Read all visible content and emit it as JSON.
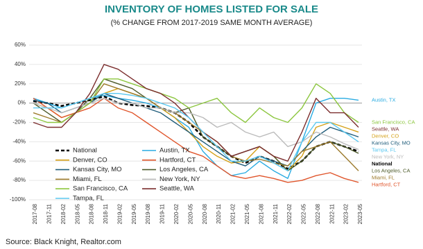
{
  "chart_data": {
    "type": "line",
    "title": "INVENTORY OF HOMES LISTED FOR SALE",
    "subtitle": "(% CHANGE FROM 2017-2019 SAME MONTH AVERAGE)",
    "source": "Source: Black Knight, Realtor.com",
    "categories": [
      "2017-08",
      "2017-11",
      "2018-02",
      "2018-05",
      "2018-08",
      "2018-11",
      "2019-02",
      "2019-05",
      "2019-08",
      "2019-11",
      "2020-02",
      "2020-05",
      "2020-08",
      "2020-11",
      "2021-02",
      "2021-05",
      "2021-08",
      "2021-11",
      "2022-02",
      "2022-05",
      "2022-08",
      "2022-11",
      "2023-02",
      "2023-05"
    ],
    "ylim": [
      -100,
      60
    ],
    "yticks": [
      {
        "value": -100,
        "label": "-100%"
      },
      {
        "value": -80,
        "label": "-80%"
      },
      {
        "value": -60,
        "label": "-60%"
      },
      {
        "value": -40,
        "label": "-40%"
      },
      {
        "value": -20,
        "label": "-20%"
      },
      {
        "value": 0,
        "label": "0%"
      },
      {
        "value": 20,
        "label": "20%"
      },
      {
        "value": 40,
        "label": "40%"
      },
      {
        "value": 60,
        "label": "60%"
      }
    ],
    "grid": true,
    "series": [
      {
        "name": "National",
        "color": "#000000",
        "dashed": true,
        "values": [
          2,
          0,
          -3,
          0,
          3,
          7,
          0,
          -2,
          -3,
          -5,
          -10,
          -20,
          -35,
          -45,
          -55,
          -62,
          -55,
          -60,
          -68,
          -60,
          -45,
          -40,
          -45,
          -50
        ]
      },
      {
        "name": "Austin, TX",
        "color": "#29abe2",
        "values": [
          5,
          0,
          -5,
          0,
          5,
          8,
          5,
          3,
          0,
          -5,
          -15,
          -25,
          -50,
          -65,
          -75,
          -72,
          -60,
          -70,
          -78,
          -40,
          0,
          5,
          5,
          3
        ]
      },
      {
        "name": "Denver, CO",
        "color": "#d4a017",
        "values": [
          0,
          -5,
          -15,
          -10,
          0,
          10,
          15,
          10,
          5,
          -5,
          -15,
          -30,
          -45,
          -55,
          -62,
          -60,
          -45,
          -55,
          -70,
          -55,
          -25,
          -20,
          -25,
          -30
        ]
      },
      {
        "name": "Hartford, CT",
        "color": "#e0552b",
        "values": [
          5,
          -5,
          -15,
          -10,
          -5,
          5,
          -5,
          -10,
          -20,
          -30,
          -40,
          -50,
          -55,
          -65,
          -75,
          -78,
          -75,
          -78,
          -82,
          -80,
          -75,
          -72,
          -78,
          -82
        ]
      },
      {
        "name": "Kansas City, MO",
        "color": "#1f5c7a",
        "values": [
          3,
          0,
          -10,
          -5,
          0,
          10,
          5,
          0,
          -5,
          -10,
          -20,
          -30,
          -40,
          -50,
          -60,
          -65,
          -55,
          -60,
          -65,
          -50,
          -35,
          -25,
          -30,
          -35
        ]
      },
      {
        "name": "Los Angeles, CA",
        "color": "#4d5a2a",
        "values": [
          0,
          -10,
          -20,
          -10,
          5,
          25,
          20,
          15,
          5,
          -5,
          -10,
          -5,
          -35,
          -45,
          -55,
          -50,
          -45,
          -55,
          -70,
          -60,
          -45,
          -40,
          -45,
          -52
        ]
      },
      {
        "name": "Miami, FL",
        "color": "#9c7a2b",
        "values": [
          -10,
          -15,
          -20,
          -10,
          0,
          20,
          15,
          10,
          5,
          -5,
          -10,
          -20,
          -30,
          -40,
          -55,
          -60,
          -58,
          -62,
          -65,
          -50,
          -45,
          -40,
          -55,
          -70
        ]
      },
      {
        "name": "New York, NY",
        "color": "#bbbbbb",
        "values": [
          0,
          -5,
          -10,
          -5,
          0,
          5,
          0,
          0,
          -5,
          -5,
          -10,
          -10,
          -15,
          -25,
          -20,
          -30,
          -35,
          -30,
          -45,
          -40,
          -30,
          -35,
          -42,
          -48
        ]
      },
      {
        "name": "San Francisco, CA",
        "color": "#8cc63f",
        "values": [
          -15,
          -20,
          -20,
          -10,
          0,
          25,
          25,
          20,
          15,
          10,
          5,
          -5,
          0,
          5,
          -10,
          -20,
          -5,
          -15,
          -20,
          -5,
          20,
          10,
          -10,
          -20
        ]
      },
      {
        "name": "Seattle, WA",
        "color": "#7b2d2d",
        "values": [
          -20,
          -25,
          -25,
          -10,
          10,
          40,
          35,
          25,
          15,
          10,
          0,
          -15,
          -30,
          -40,
          -55,
          -50,
          -45,
          -55,
          -60,
          -30,
          5,
          -10,
          -10,
          -25
        ]
      },
      {
        "name": "Tampa, FL",
        "color": "#5bc8f0",
        "values": [
          -5,
          -5,
          -5,
          0,
          5,
          10,
          10,
          8,
          5,
          0,
          -5,
          -15,
          -30,
          -45,
          -60,
          -60,
          -55,
          -62,
          -70,
          -40,
          -20,
          -20,
          -30,
          -40
        ]
      }
    ]
  }
}
